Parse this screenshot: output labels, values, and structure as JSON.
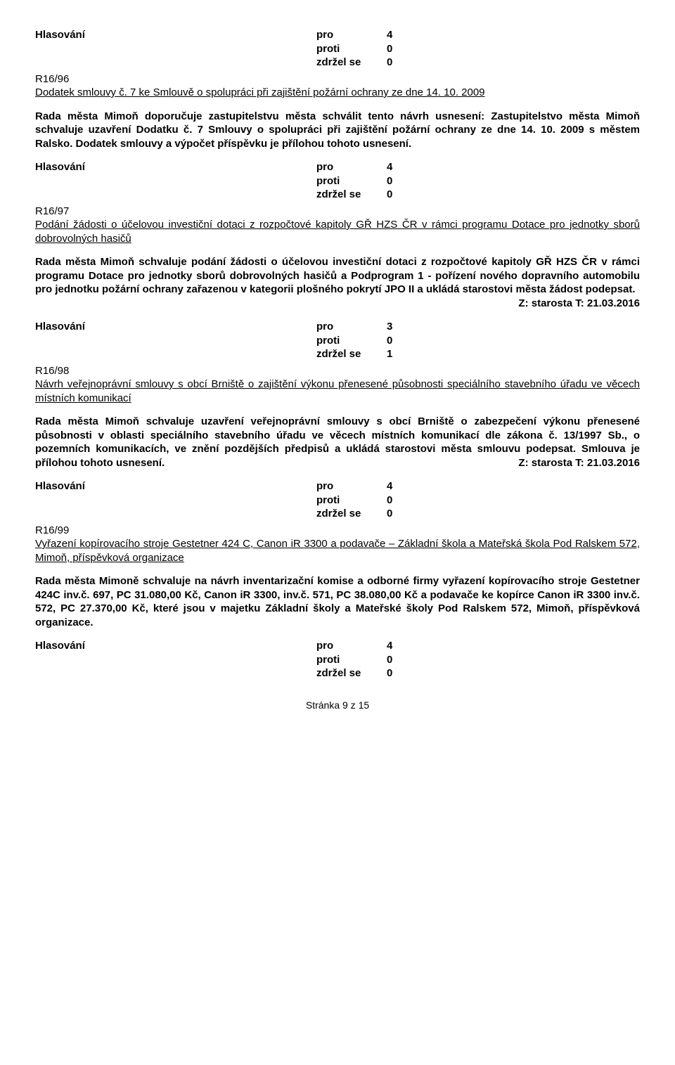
{
  "vote": {
    "label": "Hlasování",
    "pro_key": "pro",
    "proti_key": "proti",
    "zdrzel_key": "zdržel se"
  },
  "s1": {
    "pro": "4",
    "proti": "0",
    "zdrzel": "0",
    "code": "R16/96",
    "title": "Dodatek smlouvy č. 7 ke Smlouvě o spolupráci při zajištění požární ochrany ze dne 14. 10. 2009",
    "body": "Rada města Mimoň doporučuje zastupitelstvu města schválit tento návrh usnesení: Zastupitelstvo města Mimoň schvaluje uzavření Dodatku č. 7 Smlouvy o spolupráci při zajištění požární ochrany ze dne 14. 10. 2009 s městem Ralsko.   Dodatek smlouvy a výpočet příspěvku je přílohou tohoto usnesení."
  },
  "s2": {
    "pro": "4",
    "proti": "0",
    "zdrzel": "0",
    "code": "R16/97",
    "title": "Podání žádosti o účelovou investiční dotaci z rozpočtové kapitoly GŘ HZS ČR v rámci programu Dotace pro jednotky sborů dobrovolných hasičů",
    "body": "Rada města Mimoň schvaluje podání žádosti o účelovou investiční dotaci z rozpočtové kapitoly GŘ HZS ČR v rámci programu Dotace pro jednotky sborů dobrovolných hasičů a Podprogram 1 - pořízení nového dopravního automobilu pro jednotku požární ochrany zařazenou v kategorii plošného pokrytí JPO II a ukládá starostovi města žádost podepsat.",
    "deadline": "Z: starosta  T: 21.03.2016"
  },
  "s3": {
    "pro": "3",
    "proti": "0",
    "zdrzel": "1",
    "code": "R16/98",
    "title": "Návrh veřejnoprávní smlouvy s obcí Brniště o zajištění výkonu přenesené působnosti speciálního stavebního úřadu ve věcech místních komunikací",
    "body": "Rada města Mimoň schvaluje uzavření veřejnoprávní smlouvy s obcí Brniště o zabezpečení výkonu přenesené působnosti v oblasti speciálního stavebního úřadu ve věcech místních komunikací dle zákona č. 13/1997 Sb., o pozemních komunikacích, ve znění pozdějších předpisů a ukládá starostovi města smlouvu podepsat. Smlouva je přílohou tohoto usnesení.",
    "deadline": "Z: starosta  T: 21.03.2016"
  },
  "s4": {
    "pro": "4",
    "proti": "0",
    "zdrzel": "0",
    "code": "R16/99",
    "title": "Vyřazení kopírovacího stroje Gestetner 424 C, Canon iR 3300 a podavače – Základní škola a Mateřská škola Pod Ralskem 572, Mimoň, příspěvková organizace",
    "body": "Rada města Mimoně schvaluje na návrh inventarizační komise a odborné firmy vyřazení kopírovacího stroje Gestetner 424C inv.č. 697, PC 31.080,00 Kč, Canon iR 3300, inv.č. 571, PC 38.080,00 Kč a podavače ke kopírce Canon iR 3300 inv.č. 572, PC 27.370,00 Kč, které jsou v majetku Základní školy a Mateřské školy Pod Ralskem 572, Mimoň, příspěvková organizace."
  },
  "s5": {
    "pro": "4",
    "proti": "0",
    "zdrzel": "0"
  },
  "footer": "Stránka 9 z 15"
}
